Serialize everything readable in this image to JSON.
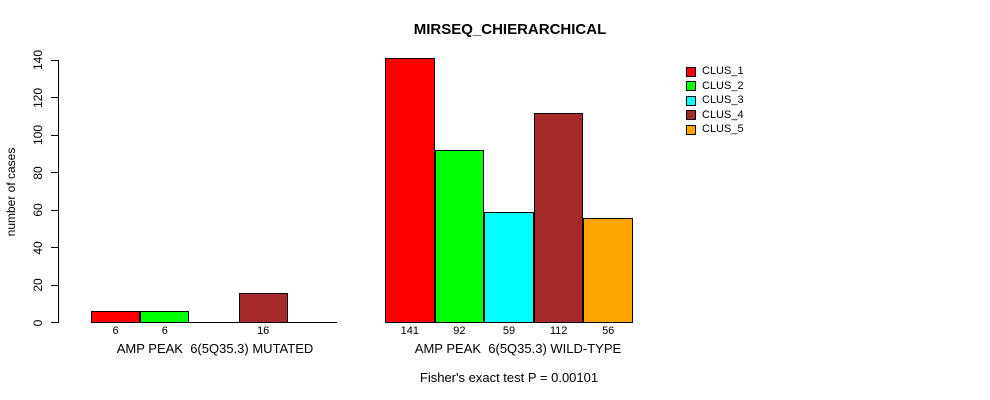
{
  "window": {
    "background": "#FFFFFF"
  },
  "title": "MIRSEQ_CHIERARCHICAL",
  "y_axis": {
    "label": "number of cases",
    "tick_labels": [
      "0",
      "20",
      "40",
      "60",
      "80",
      "100",
      "120",
      "140"
    ]
  },
  "legend": {
    "position": "top-right",
    "items": [
      {
        "label": "CLUS_1",
        "color": "#FF0000"
      },
      {
        "label": "CLUS_2",
        "color": "#00FF00"
      },
      {
        "label": "CLUS_3",
        "color": "#00FFFF"
      },
      {
        "label": "CLUS_4",
        "color": "#A52A2A"
      },
      {
        "label": "CLUS_5",
        "color": "#FFA500"
      }
    ]
  },
  "annotation": "Fisher's exact test P = 0.00101",
  "chart_data": {
    "type": "bar",
    "title": "MIRSEQ_CHIERARCHICAL",
    "xlabel": "",
    "ylabel": "number of cases",
    "ylim": [
      0,
      140
    ],
    "yticks": [
      0,
      20,
      40,
      60,
      80,
      100,
      120,
      140
    ],
    "grid": false,
    "legend_position": "top-right",
    "series": [
      "CLUS_1",
      "CLUS_2",
      "CLUS_3",
      "CLUS_4",
      "CLUS_5"
    ],
    "colors": [
      "#FF0000",
      "#00FF00",
      "#00FFFF",
      "#A52A2A",
      "#FFA500"
    ],
    "categories": [
      "AMP PEAK  6(5Q35.3) MUTATED",
      "AMP PEAK  6(5Q35.3) WILD-TYPE"
    ],
    "groups": [
      {
        "label": "AMP PEAK  6(5Q35.3) MUTATED",
        "values": [
          6,
          6,
          0,
          16,
          0
        ],
        "bar_labels": [
          "6",
          "6",
          "",
          "16",
          ""
        ]
      },
      {
        "label": "AMP PEAK  6(5Q35.3) WILD-TYPE",
        "values": [
          141,
          92,
          59,
          112,
          56
        ],
        "bar_labels": [
          "141",
          "92",
          "59",
          "112",
          "56"
        ]
      }
    ],
    "annotation": "Fisher's exact test P = 0.00101",
    "zero_value_bars_not_drawn": true
  }
}
